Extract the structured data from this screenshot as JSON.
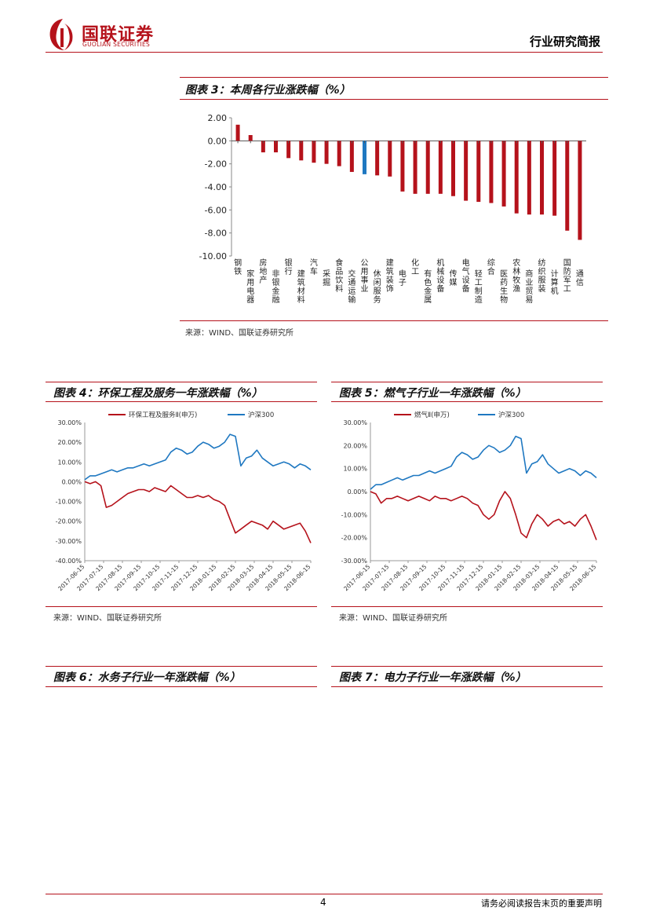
{
  "header": {
    "logo_cn": "国联证券",
    "logo_en": "GUOLIAN SECURITIES",
    "report_type": "行业研究简报"
  },
  "fig3": {
    "title": "图表 3：本周各行业涨跌幅（%）",
    "source": "来源：WIND、国联证券研究所",
    "chart_data": {
      "type": "bar",
      "ylim": [
        -10,
        2
      ],
      "yticks": [
        "2.00",
        "0.00",
        "-2.00",
        "-4.00",
        "-6.00",
        "-8.00",
        "-10.00"
      ],
      "categories": [
        "钢铁",
        "家用电器",
        "房地产",
        "非银金融",
        "银行",
        "建筑材料",
        "汽车",
        "采掘",
        "食品饮料",
        "交通运输",
        "公用事业",
        "休闲服务",
        "建筑装饰",
        "电子",
        "化工",
        "有色金属",
        "机械设备",
        "传媒",
        "电气设备",
        "轻工制造",
        "综合",
        "医药生物",
        "农林牧渔",
        "商业贸易",
        "纺织服装",
        "计算机",
        "国防军工",
        "通信"
      ],
      "values": [
        1.4,
        0.5,
        -1.0,
        -1.0,
        -1.5,
        -1.7,
        -1.9,
        -2.0,
        -2.2,
        -2.7,
        -2.9,
        -3.0,
        -3.1,
        -4.4,
        -4.6,
        -4.6,
        -4.6,
        -4.8,
        -5.2,
        -5.3,
        -5.4,
        -5.7,
        -6.3,
        -6.4,
        -6.4,
        -6.5,
        -7.8,
        -8.6
      ],
      "highlight_index": 10,
      "colors": {
        "bar": "#b5121b",
        "highlight": "#1f78c1"
      }
    }
  },
  "fig4": {
    "title": "图表 4：环保工程及服务一年涨跌幅（%）",
    "source": "来源：WIND、国联证券研究所",
    "chart_data": {
      "type": "line",
      "ylim": [
        -40,
        30
      ],
      "yticks": [
        "30.00%",
        "20.00%",
        "10.00%",
        "0.00%",
        "-10.00%",
        "-20.00%",
        "-30.00%",
        "-40.00%"
      ],
      "xticks": [
        "2017-06-15",
        "2017-07-15",
        "2017-08-15",
        "2017-09-15",
        "2017-10-15",
        "2017-11-15",
        "2017-12-15",
        "2018-01-15",
        "2018-02-15",
        "2018-03-15",
        "2018-04-15",
        "2018-05-15",
        "2018-06-15"
      ],
      "series": [
        {
          "name": "环保工程及服务Ⅱ(申万)",
          "color": "#b5121b",
          "values": [
            0,
            -1,
            0,
            -2,
            -13,
            -12,
            -10,
            -8,
            -6,
            -5,
            -4,
            -4,
            -5,
            -3,
            -4,
            -5,
            -2,
            -4,
            -6,
            -8,
            -8,
            -7,
            -8,
            -7,
            -9,
            -10,
            -12,
            -19,
            -26,
            -24,
            -22,
            -20,
            -21,
            -22,
            -24,
            -20,
            -22,
            -24,
            -23,
            -22,
            -21,
            -25,
            -31
          ]
        },
        {
          "name": "沪深300",
          "color": "#1f78c1",
          "values": [
            1,
            3,
            3,
            4,
            5,
            6,
            5,
            6,
            7,
            7,
            8,
            9,
            8,
            9,
            10,
            11,
            15,
            17,
            16,
            14,
            15,
            18,
            20,
            19,
            17,
            18,
            20,
            24,
            23,
            8,
            12,
            13,
            16,
            12,
            10,
            8,
            9,
            10,
            9,
            7,
            9,
            8,
            6
          ]
        }
      ]
    }
  },
  "fig5": {
    "title": "图表 5：燃气子行业一年涨跌幅（%）",
    "source": "来源：WIND、国联证券研究所",
    "chart_data": {
      "type": "line",
      "ylim": [
        -30,
        30
      ],
      "yticks": [
        "30.00%",
        "20.00%",
        "10.00%",
        "0.00%",
        "-10.00%",
        "-20.00%",
        "-30.00%"
      ],
      "xticks": [
        "2017-06-15",
        "2017-07-15",
        "2017-08-15",
        "2017-09-15",
        "2017-10-15",
        "2017-11-15",
        "2017-12-15",
        "2018-01-15",
        "2018-02-15",
        "2018-03-15",
        "2018-04-15",
        "2018-05-15",
        "2018-06-15"
      ],
      "series": [
        {
          "name": "燃气Ⅱ(申万)",
          "color": "#b5121b",
          "values": [
            0,
            -1,
            -5,
            -3,
            -3,
            -2,
            -3,
            -4,
            -3,
            -2,
            -3,
            -4,
            -2,
            -3,
            -3,
            -4,
            -3,
            -2,
            -3,
            -5,
            -6,
            -10,
            -12,
            -10,
            -4,
            0,
            -3,
            -10,
            -18,
            -20,
            -14,
            -10,
            -12,
            -15,
            -13,
            -12,
            -14,
            -13,
            -15,
            -12,
            -10,
            -15,
            -21
          ]
        },
        {
          "name": "沪深300",
          "color": "#1f78c1",
          "values": [
            1,
            3,
            3,
            4,
            5,
            6,
            5,
            6,
            7,
            7,
            8,
            9,
            8,
            9,
            10,
            11,
            15,
            17,
            16,
            14,
            15,
            18,
            20,
            19,
            17,
            18,
            20,
            24,
            23,
            8,
            12,
            13,
            16,
            12,
            10,
            8,
            9,
            10,
            9,
            7,
            9,
            8,
            6
          ]
        }
      ]
    }
  },
  "fig6": {
    "title": "图表 6：水务子行业一年涨跌幅（%）"
  },
  "fig7": {
    "title": "图表 7：电力子行业一年涨跌幅（%）"
  },
  "footer": {
    "page": "4",
    "disclaimer": "请务必阅读报告末页的重要声明"
  }
}
